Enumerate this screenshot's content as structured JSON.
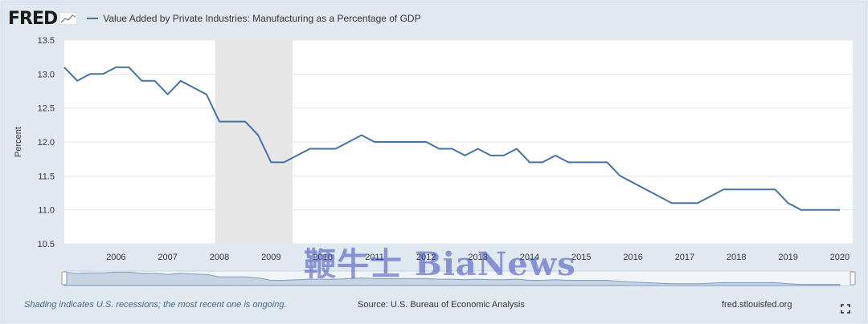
{
  "header": {
    "logo_text": "FRED",
    "series_title": "Value Added by Private Industries: Manufacturing as a Percentage of GDP"
  },
  "footer": {
    "recession_note": "Shading indicates U.S. recessions; the most recent one is ongoing.",
    "source": "Source: U.S. Bureau of Economic Analysis",
    "site": "fred.stlouisfed.org"
  },
  "watermark": "鞭牛士 BiaNews",
  "colors": {
    "line": "#4572a7",
    "recession": "#e6e6e6",
    "background": "#e1e9f0",
    "plot": "#ffffff"
  },
  "chart_data": {
    "type": "line",
    "ylabel": "Percent",
    "ylim": [
      10.5,
      13.5
    ],
    "yticks": [
      "10.5",
      "11.0",
      "11.5",
      "12.0",
      "12.5",
      "13.0",
      "13.5"
    ],
    "xlim": [
      "2005-01",
      "2020-04"
    ],
    "xticks": [
      "2006",
      "2007",
      "2008",
      "2009",
      "2010",
      "2011",
      "2012",
      "2013",
      "2014",
      "2015",
      "2016",
      "2017",
      "2018",
      "2019",
      "2020"
    ],
    "grid": true,
    "recessions": [
      [
        "2007-12",
        "2009-06"
      ]
    ],
    "series": [
      {
        "name": "Value Added by Private Industries: Manufacturing as a Percentage of GDP",
        "x": [
          "2005-01",
          "2005-04",
          "2005-07",
          "2005-10",
          "2006-01",
          "2006-04",
          "2006-07",
          "2006-10",
          "2007-01",
          "2007-04",
          "2007-07",
          "2007-10",
          "2008-01",
          "2008-04",
          "2008-07",
          "2008-10",
          "2009-01",
          "2009-04",
          "2009-07",
          "2009-10",
          "2010-01",
          "2010-04",
          "2010-07",
          "2010-10",
          "2011-01",
          "2011-04",
          "2011-07",
          "2011-10",
          "2012-01",
          "2012-04",
          "2012-07",
          "2012-10",
          "2013-01",
          "2013-04",
          "2013-07",
          "2013-10",
          "2014-01",
          "2014-04",
          "2014-07",
          "2014-10",
          "2015-01",
          "2015-04",
          "2015-07",
          "2015-10",
          "2016-01",
          "2016-04",
          "2016-07",
          "2016-10",
          "2017-01",
          "2017-04",
          "2017-07",
          "2017-10",
          "2018-01",
          "2018-04",
          "2018-07",
          "2018-10",
          "2019-01",
          "2019-04",
          "2019-07",
          "2019-10",
          "2020-01"
        ],
        "y": [
          13.1,
          12.9,
          13.0,
          13.0,
          13.1,
          13.1,
          12.9,
          12.9,
          12.7,
          12.9,
          12.8,
          12.7,
          12.3,
          12.3,
          12.3,
          12.1,
          11.7,
          11.7,
          11.8,
          11.9,
          11.9,
          11.9,
          12.0,
          12.1,
          12.0,
          12.0,
          12.0,
          12.0,
          12.0,
          11.9,
          11.9,
          11.8,
          11.9,
          11.8,
          11.8,
          11.9,
          11.7,
          11.7,
          11.8,
          11.7,
          11.7,
          11.7,
          11.7,
          11.5,
          11.4,
          11.3,
          11.2,
          11.1,
          11.1,
          11.1,
          11.2,
          11.3,
          11.3,
          11.3,
          11.3,
          11.3,
          11.1,
          11.0,
          11.0,
          11.0,
          11.0
        ]
      }
    ]
  }
}
